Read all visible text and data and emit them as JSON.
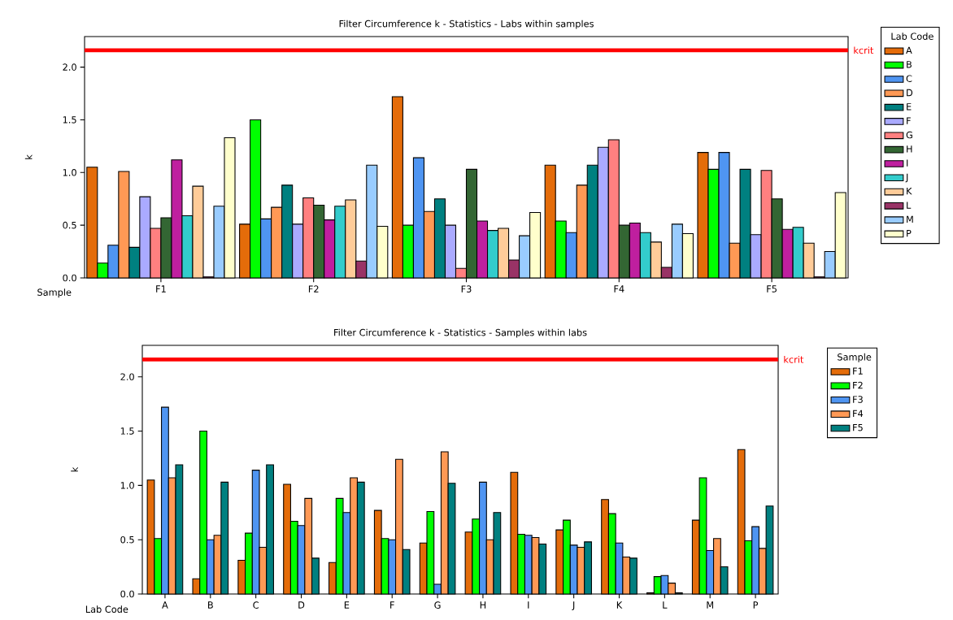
{
  "chart_data": [
    {
      "type": "bar",
      "title": "Filter Circumference k - Statistics - Labs within samples",
      "xlabel": "Sample",
      "ylabel": "k",
      "legend_title": "Lab Code",
      "legend": "right",
      "categories": [
        "F1",
        "F2",
        "F3",
        "F4",
        "F5"
      ],
      "series": [
        {
          "name": "A",
          "color": "#e46c0a",
          "values": [
            1.05,
            0.51,
            1.72,
            1.07,
            1.19
          ]
        },
        {
          "name": "B",
          "color": "#00ff00",
          "values": [
            0.14,
            1.5,
            0.5,
            0.54,
            1.03
          ]
        },
        {
          "name": "C",
          "color": "#4f95f2",
          "values": [
            0.31,
            0.56,
            1.14,
            0.43,
            1.19
          ]
        },
        {
          "name": "D",
          "color": "#ff9955",
          "values": [
            1.01,
            0.67,
            0.63,
            0.88,
            0.33
          ]
        },
        {
          "name": "E",
          "color": "#008080",
          "values": [
            0.29,
            0.88,
            0.75,
            1.07,
            1.03
          ]
        },
        {
          "name": "F",
          "color": "#aaaaff",
          "values": [
            0.77,
            0.51,
            0.5,
            1.24,
            0.41
          ]
        },
        {
          "name": "G",
          "color": "#ff8080",
          "values": [
            0.47,
            0.76,
            0.09,
            1.31,
            1.02
          ]
        },
        {
          "name": "H",
          "color": "#336633",
          "values": [
            0.57,
            0.69,
            1.03,
            0.5,
            0.75
          ]
        },
        {
          "name": "I",
          "color": "#bf1f9f",
          "values": [
            1.12,
            0.55,
            0.54,
            0.52,
            0.46
          ]
        },
        {
          "name": "J",
          "color": "#33cccc",
          "values": [
            0.59,
            0.68,
            0.45,
            0.43,
            0.48
          ]
        },
        {
          "name": "K",
          "color": "#ffcc99",
          "values": [
            0.87,
            0.74,
            0.47,
            0.34,
            0.33
          ]
        },
        {
          "name": "L",
          "color": "#993366",
          "values": [
            0.01,
            0.16,
            0.17,
            0.1,
            0.01
          ]
        },
        {
          "name": "M",
          "color": "#99ccff",
          "values": [
            0.68,
            1.07,
            0.4,
            0.51,
            0.25
          ]
        },
        {
          "name": "P",
          "color": "#ffffcc",
          "values": [
            1.33,
            0.49,
            0.62,
            0.42,
            0.81
          ]
        }
      ],
      "ylim": [
        0,
        2.29
      ],
      "yticks": [
        {
          "value": 0,
          "label": "0.0"
        },
        {
          "value": 0.5,
          "label": "0.5"
        },
        {
          "value": 1,
          "label": "1.0"
        },
        {
          "value": 1.5,
          "label": "1.5"
        },
        {
          "value": 2,
          "label": "2.0"
        }
      ],
      "ref_lines": [
        {
          "axis": "y",
          "value": 2.16,
          "label": "kcrit",
          "color": "#ff0000"
        }
      ]
    },
    {
      "type": "bar",
      "title": "Filter Circumference k - Statistics - Samples within labs",
      "xlabel": "Lab Code",
      "ylabel": "k",
      "legend_title": "Sample",
      "legend": "right",
      "categories": [
        "A",
        "B",
        "C",
        "D",
        "E",
        "F",
        "G",
        "H",
        "I",
        "J",
        "K",
        "L",
        "M",
        "P"
      ],
      "series": [
        {
          "name": "F1",
          "color": "#e46c0a",
          "values": [
            1.05,
            0.14,
            0.31,
            1.01,
            0.29,
            0.77,
            0.47,
            0.57,
            1.12,
            0.59,
            0.87,
            0.01,
            0.68,
            1.33
          ]
        },
        {
          "name": "F2",
          "color": "#00ff00",
          "values": [
            0.51,
            1.5,
            0.56,
            0.67,
            0.88,
            0.51,
            0.76,
            0.69,
            0.55,
            0.68,
            0.74,
            0.16,
            1.07,
            0.49
          ]
        },
        {
          "name": "F3",
          "color": "#4f95f2",
          "values": [
            1.72,
            0.5,
            1.14,
            0.63,
            0.75,
            0.5,
            0.09,
            1.03,
            0.54,
            0.45,
            0.47,
            0.17,
            0.4,
            0.62
          ]
        },
        {
          "name": "F4",
          "color": "#ff9955",
          "values": [
            1.07,
            0.54,
            0.43,
            0.88,
            1.07,
            1.24,
            1.31,
            0.5,
            0.52,
            0.43,
            0.34,
            0.1,
            0.51,
            0.42
          ]
        },
        {
          "name": "F5",
          "color": "#008080",
          "values": [
            1.19,
            1.03,
            1.19,
            0.33,
            1.03,
            0.41,
            1.02,
            0.75,
            0.46,
            0.48,
            0.33,
            0.01,
            0.25,
            0.81
          ]
        }
      ],
      "ylim": [
        0,
        2.29
      ],
      "yticks": [
        {
          "value": 0,
          "label": "0.0"
        },
        {
          "value": 0.5,
          "label": "0.5"
        },
        {
          "value": 1,
          "label": "1.0"
        },
        {
          "value": 1.5,
          "label": "1.5"
        },
        {
          "value": 2,
          "label": "2.0"
        }
      ],
      "ref_lines": [
        {
          "axis": "y",
          "value": 2.16,
          "label": "kcrit",
          "color": "#ff0000"
        }
      ]
    }
  ]
}
